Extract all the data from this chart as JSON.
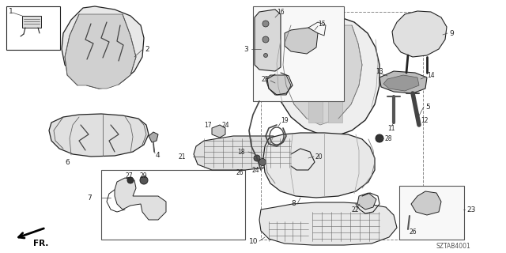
{
  "bg_color": "#ffffff",
  "line_color": "#222222",
  "diagram_code": "SZTAB4001",
  "fig_w": 6.4,
  "fig_h": 3.2,
  "dpi": 100
}
